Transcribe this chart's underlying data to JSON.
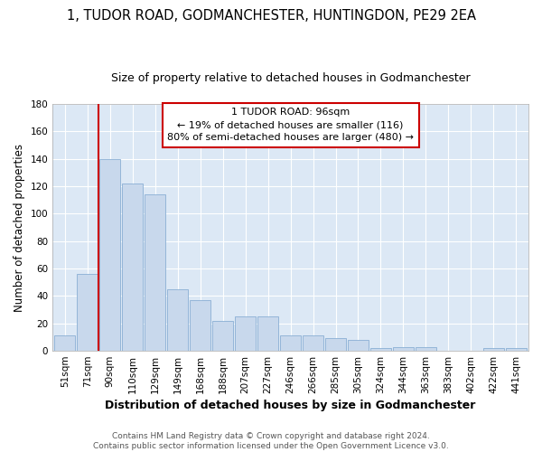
{
  "title1": "1, TUDOR ROAD, GODMANCHESTER, HUNTINGDON, PE29 2EA",
  "title2": "Size of property relative to detached houses in Godmanchester",
  "xlabel": "Distribution of detached houses by size in Godmanchester",
  "ylabel": "Number of detached properties",
  "categories": [
    "51sqm",
    "71sqm",
    "90sqm",
    "110sqm",
    "129sqm",
    "149sqm",
    "168sqm",
    "188sqm",
    "207sqm",
    "227sqm",
    "246sqm",
    "266sqm",
    "285sqm",
    "305sqm",
    "324sqm",
    "344sqm",
    "363sqm",
    "383sqm",
    "402sqm",
    "422sqm",
    "441sqm"
  ],
  "values": [
    11,
    56,
    140,
    122,
    114,
    45,
    37,
    22,
    25,
    25,
    11,
    11,
    9,
    8,
    2,
    3,
    3,
    0,
    0,
    2,
    2
  ],
  "bar_color": "#c8d8ec",
  "bar_edge_color": "#8aafd4",
  "bar_width": 0.92,
  "vline_x": 2.5,
  "annotation_text": "1 TUDOR ROAD: 96sqm\n← 19% of detached houses are smaller (116)\n80% of semi-detached houses are larger (480) →",
  "annotation_box_facecolor": "#ffffff",
  "annotation_box_edgecolor": "#cc0000",
  "vline_color": "#cc0000",
  "ylim": [
    0,
    180
  ],
  "yticks": [
    0,
    20,
    40,
    60,
    80,
    100,
    120,
    140,
    160,
    180
  ],
  "fig_facecolor": "#ffffff",
  "plot_bg_color": "#dce8f5",
  "grid_color": "#ffffff",
  "footer_text": "Contains HM Land Registry data © Crown copyright and database right 2024.\nContains public sector information licensed under the Open Government Licence v3.0.",
  "title1_fontsize": 10.5,
  "title2_fontsize": 9,
  "xlabel_fontsize": 9,
  "ylabel_fontsize": 8.5,
  "tick_fontsize": 7.5,
  "annotation_fontsize": 8,
  "footer_fontsize": 6.5
}
